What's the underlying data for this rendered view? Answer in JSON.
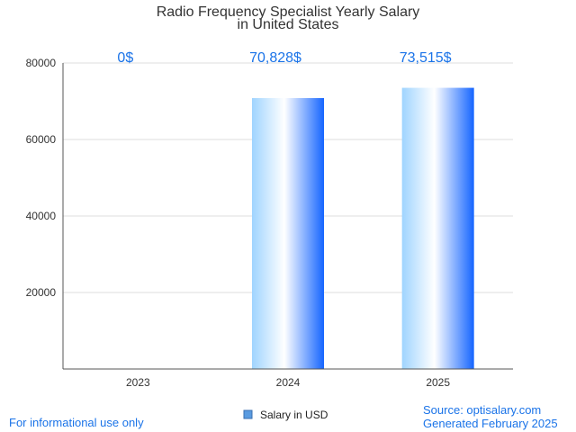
{
  "title_line1": "Radio Frequency Specialist Yearly Salary",
  "title_line2": "in United States",
  "legend_label": "Salary in USD",
  "footer_left": "For informational use only",
  "footer_source": "Source: optisalary.com",
  "footer_generated": "Generated February 2025",
  "colors": {
    "bar_edge": "#1565ff",
    "bar_light": "#9fd4ff",
    "label": "#1a73e8"
  },
  "chart_data": {
    "type": "bar",
    "categories": [
      "2023",
      "2024",
      "2025"
    ],
    "series": [
      {
        "name": "Salary in USD",
        "values": [
          0,
          70828,
          73515
        ]
      }
    ],
    "data_labels": [
      "0$",
      "70,828$",
      "73,515$"
    ],
    "yticks": [
      20000,
      40000,
      60000,
      80000
    ],
    "ylim": [
      0,
      80000
    ],
    "grid": true,
    "legend": "bottom-center"
  }
}
